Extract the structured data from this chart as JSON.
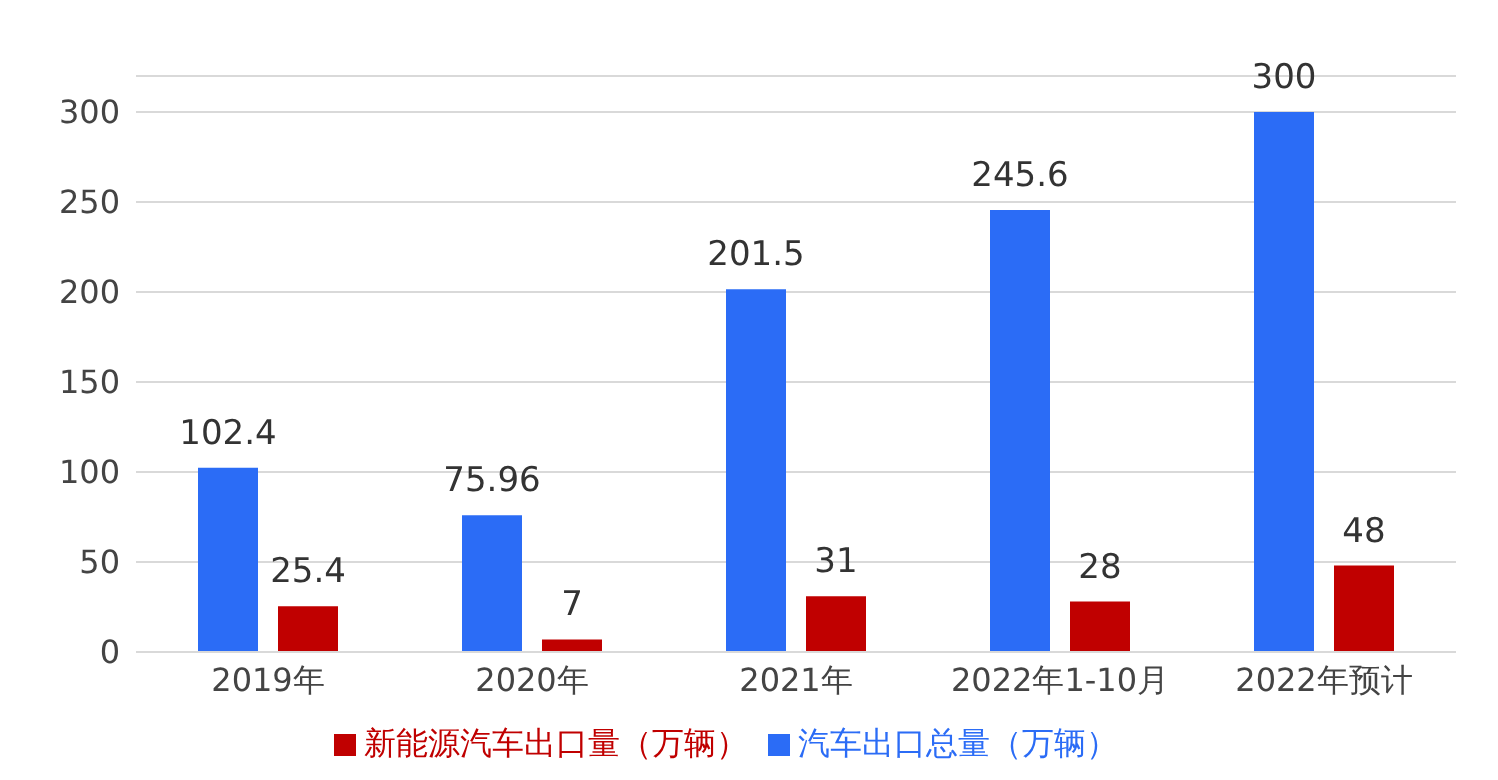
{
  "chart_data": {
    "type": "bar",
    "categories": [
      "2019年",
      "2020年",
      "2021年",
      "2022年1-10月",
      "2022年预计"
    ],
    "series": [
      {
        "name": "汽车出口总量（万辆）",
        "color": "#2b6cf6",
        "values": [
          102.4,
          75.96,
          201.5,
          245.6,
          300
        ]
      },
      {
        "name": "新能源汽车出口量（万辆）",
        "color": "#c00000",
        "values": [
          25.4,
          7,
          31,
          28,
          48
        ]
      }
    ],
    "ylim": [
      0,
      320
    ],
    "yticks": [
      0,
      50,
      100,
      150,
      200,
      250,
      300
    ],
    "grid": "y",
    "legend": "bottom",
    "data_labels": true
  }
}
